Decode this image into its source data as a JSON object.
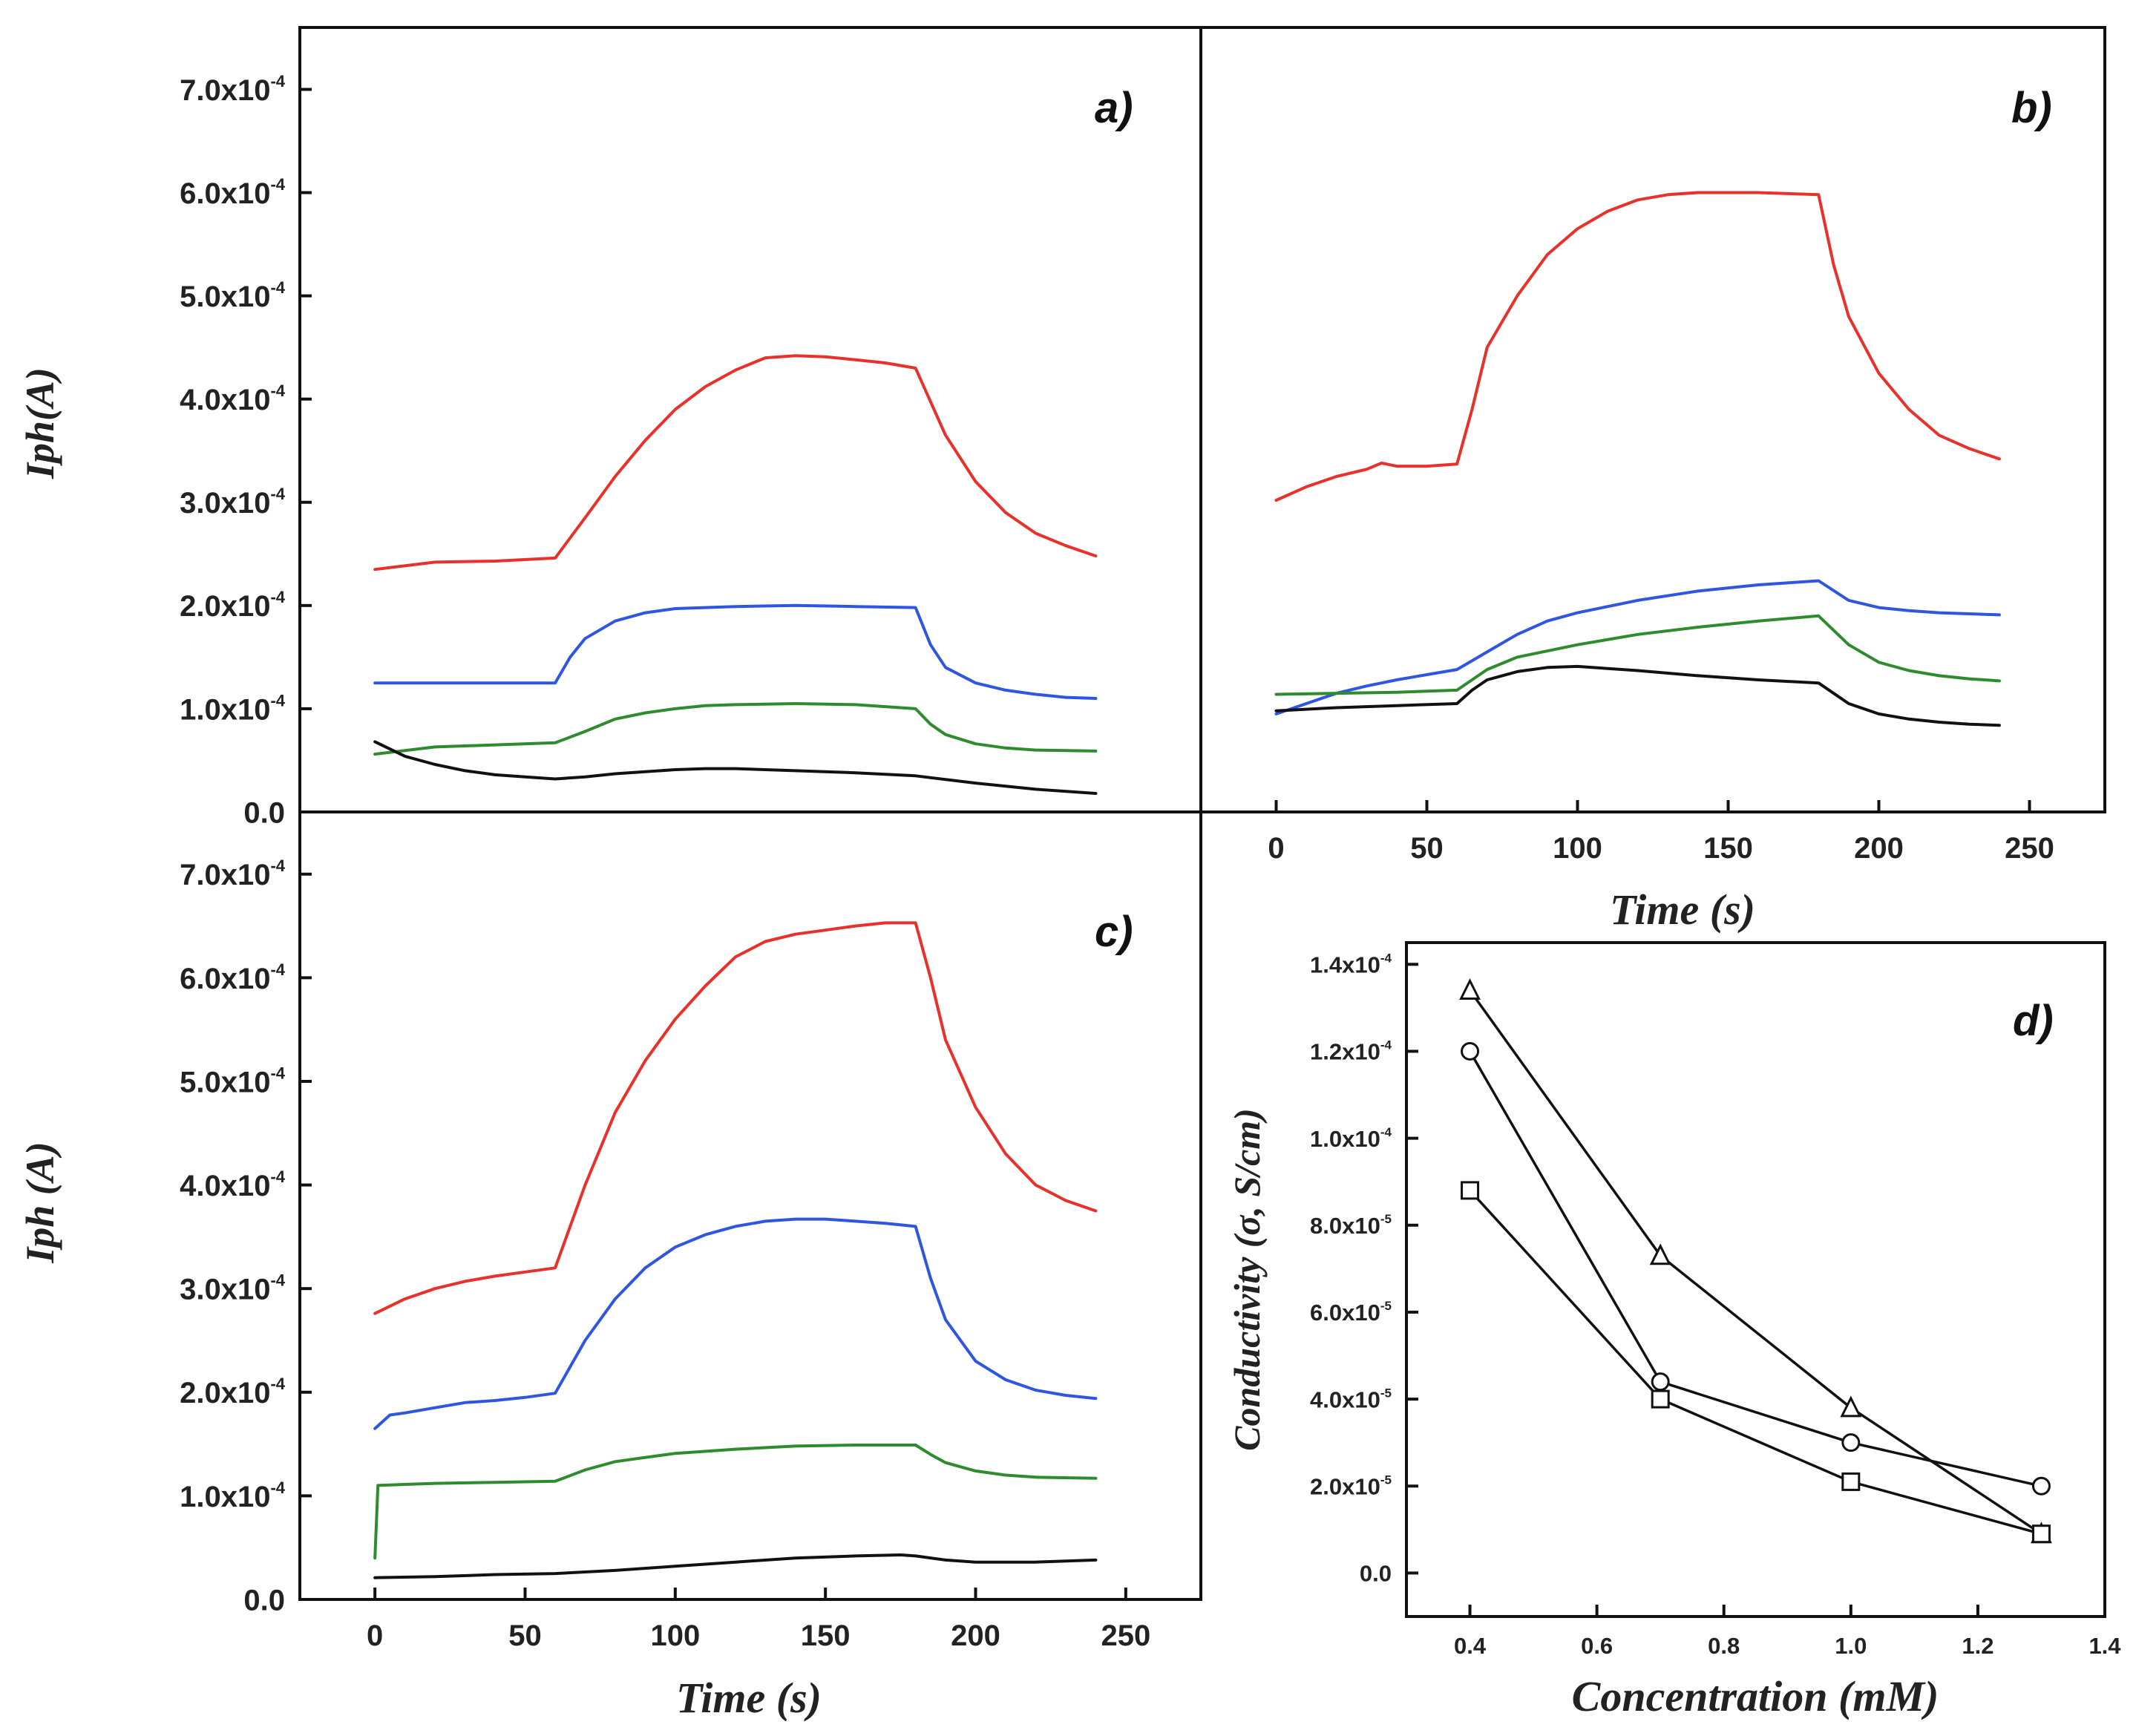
{
  "chart_data": [
    {
      "panel": "a)",
      "type": "line",
      "xlabel": "",
      "ylabel": "Iph(A)",
      "xlim": [
        -25,
        275
      ],
      "ylim": [
        0,
        0.00076
      ],
      "xticks": [],
      "yticks": [
        {
          "value": 0,
          "label": "0.0",
          "exp": ""
        },
        {
          "value": 0.0001,
          "label": "1.0x10",
          "exp": "-4"
        },
        {
          "value": 0.0002,
          "label": "2.0x10",
          "exp": "-4"
        },
        {
          "value": 0.0003,
          "label": "3.0x10",
          "exp": "-4"
        },
        {
          "value": 0.0004,
          "label": "4.0x10",
          "exp": "-4"
        },
        {
          "value": 0.0005,
          "label": "5.0x10",
          "exp": "-4"
        },
        {
          "value": 0.0006,
          "label": "6.0x10",
          "exp": "-4"
        },
        {
          "value": 0.0007,
          "label": "7.0x10",
          "exp": "-4"
        }
      ],
      "series": [
        {
          "name": "red",
          "color": "#e8312a",
          "x": [
            0,
            20,
            40,
            60,
            70,
            80,
            90,
            100,
            110,
            120,
            130,
            140,
            150,
            160,
            170,
            180,
            190,
            200,
            210,
            220,
            230,
            240
          ],
          "y": [
            0.000235,
            0.000242,
            0.000243,
            0.000246,
            0.000285,
            0.000325,
            0.00036,
            0.00039,
            0.000412,
            0.000428,
            0.00044,
            0.000442,
            0.000441,
            0.000438,
            0.000435,
            0.00043,
            0.000365,
            0.00032,
            0.00029,
            0.00027,
            0.000258,
            0.000248
          ]
        },
        {
          "name": "blue",
          "color": "#2f56e0",
          "x": [
            0,
            20,
            40,
            60,
            65,
            70,
            80,
            90,
            100,
            120,
            140,
            160,
            180,
            185,
            190,
            200,
            210,
            220,
            230,
            240
          ],
          "y": [
            0.000125,
            0.000125,
            0.000125,
            0.000125,
            0.00015,
            0.000168,
            0.000185,
            0.000193,
            0.000197,
            0.000199,
            0.0002,
            0.000199,
            0.000198,
            0.000162,
            0.00014,
            0.000125,
            0.000118,
            0.000114,
            0.000111,
            0.00011
          ]
        },
        {
          "name": "green",
          "color": "#2e8b2e",
          "x": [
            0,
            20,
            40,
            60,
            70,
            80,
            90,
            100,
            110,
            120,
            140,
            160,
            180,
            185,
            190,
            200,
            210,
            220,
            240
          ],
          "y": [
            5.6e-05,
            6.3e-05,
            6.5e-05,
            6.7e-05,
            7.8e-05,
            9e-05,
            9.6e-05,
            0.0001,
            0.000103,
            0.000104,
            0.000105,
            0.000104,
            0.0001,
            8.5e-05,
            7.5e-05,
            6.6e-05,
            6.2e-05,
            6e-05,
            5.9e-05
          ]
        },
        {
          "name": "black",
          "color": "#111111",
          "x": [
            0,
            10,
            20,
            30,
            40,
            50,
            60,
            70,
            80,
            90,
            100,
            110,
            120,
            140,
            160,
            180,
            200,
            220,
            240
          ],
          "y": [
            6.8e-05,
            5.4e-05,
            4.6e-05,
            4e-05,
            3.6e-05,
            3.4e-05,
            3.2e-05,
            3.4e-05,
            3.7e-05,
            3.9e-05,
            4.1e-05,
            4.2e-05,
            4.2e-05,
            4e-05,
            3.8e-05,
            3.5e-05,
            2.8e-05,
            2.2e-05,
            1.8e-05
          ]
        }
      ]
    },
    {
      "panel": "b)",
      "type": "line",
      "xlabel": "Time (s)",
      "ylabel": "",
      "xlim": [
        -25,
        275
      ],
      "ylim": [
        0,
        0.00076
      ],
      "xticks": [
        {
          "value": 0,
          "label": "0"
        },
        {
          "value": 50,
          "label": "50"
        },
        {
          "value": 100,
          "label": "100"
        },
        {
          "value": 150,
          "label": "150"
        },
        {
          "value": 200,
          "label": "200"
        },
        {
          "value": 250,
          "label": "250"
        }
      ],
      "yticks": [],
      "series": [
        {
          "name": "red",
          "color": "#e8312a",
          "x": [
            0,
            10,
            20,
            30,
            35,
            40,
            50,
            60,
            65,
            70,
            80,
            90,
            100,
            110,
            120,
            130,
            140,
            150,
            160,
            170,
            180,
            185,
            190,
            200,
            210,
            220,
            230,
            240
          ],
          "y": [
            0.000302,
            0.000315,
            0.000325,
            0.000332,
            0.000338,
            0.000335,
            0.000335,
            0.000337,
            0.00039,
            0.00045,
            0.0005,
            0.00054,
            0.000565,
            0.000582,
            0.000593,
            0.000598,
            0.0006,
            0.0006,
            0.0006,
            0.000599,
            0.000598,
            0.00053,
            0.00048,
            0.000425,
            0.00039,
            0.000365,
            0.000352,
            0.000342
          ]
        },
        {
          "name": "blue",
          "color": "#2f56e0",
          "x": [
            0,
            10,
            20,
            30,
            40,
            50,
            60,
            70,
            80,
            90,
            100,
            120,
            140,
            160,
            170,
            180,
            190,
            200,
            210,
            220,
            230,
            240
          ],
          "y": [
            9.5e-05,
            0.000105,
            0.000115,
            0.000122,
            0.000128,
            0.000133,
            0.000138,
            0.000155,
            0.000172,
            0.000185,
            0.000193,
            0.000205,
            0.000214,
            0.00022,
            0.000222,
            0.000224,
            0.000205,
            0.000198,
            0.000195,
            0.000193,
            0.000192,
            0.000191
          ]
        },
        {
          "name": "green",
          "color": "#2e8b2e",
          "x": [
            0,
            20,
            40,
            60,
            70,
            80,
            100,
            120,
            140,
            160,
            180,
            190,
            200,
            210,
            220,
            230,
            240
          ],
          "y": [
            0.000114,
            0.000115,
            0.000116,
            0.000118,
            0.000138,
            0.00015,
            0.000162,
            0.000172,
            0.000179,
            0.000185,
            0.00019,
            0.000162,
            0.000145,
            0.000137,
            0.000132,
            0.000129,
            0.000127
          ]
        },
        {
          "name": "black",
          "color": "#111111",
          "x": [
            0,
            20,
            40,
            60,
            65,
            70,
            80,
            90,
            100,
            120,
            140,
            160,
            180,
            190,
            200,
            210,
            220,
            230,
            240
          ],
          "y": [
            9.8e-05,
            0.000101,
            0.000103,
            0.000105,
            0.000118,
            0.000128,
            0.000136,
            0.00014,
            0.000141,
            0.000137,
            0.000132,
            0.000128,
            0.000125,
            0.000105,
            9.5e-05,
            9e-05,
            8.7e-05,
            8.5e-05,
            8.4e-05
          ]
        }
      ]
    },
    {
      "panel": "c)",
      "type": "line",
      "xlabel": "Time (s)",
      "ylabel": "Iph (A)",
      "xlim": [
        -25,
        275
      ],
      "ylim": [
        0,
        0.00076
      ],
      "xticks": [
        {
          "value": 0,
          "label": "0"
        },
        {
          "value": 50,
          "label": "50"
        },
        {
          "value": 100,
          "label": "100"
        },
        {
          "value": 150,
          "label": "150"
        },
        {
          "value": 200,
          "label": "200"
        },
        {
          "value": 250,
          "label": "250"
        }
      ],
      "yticks": [
        {
          "value": 0,
          "label": "0.0",
          "exp": ""
        },
        {
          "value": 0.0001,
          "label": "1.0x10",
          "exp": "-4"
        },
        {
          "value": 0.0002,
          "label": "2.0x10",
          "exp": "-4"
        },
        {
          "value": 0.0003,
          "label": "3.0x10",
          "exp": "-4"
        },
        {
          "value": 0.0004,
          "label": "4.0x10",
          "exp": "-4"
        },
        {
          "value": 0.0005,
          "label": "5.0x10",
          "exp": "-4"
        },
        {
          "value": 0.0006,
          "label": "6.0x10",
          "exp": "-4"
        },
        {
          "value": 0.0007,
          "label": "7.0x10",
          "exp": "-4"
        }
      ],
      "series": [
        {
          "name": "red",
          "color": "#e8312a",
          "x": [
            0,
            10,
            20,
            30,
            40,
            50,
            60,
            70,
            80,
            90,
            100,
            110,
            120,
            130,
            140,
            150,
            160,
            170,
            180,
            185,
            190,
            200,
            210,
            220,
            230,
            240
          ],
          "y": [
            0.000276,
            0.00029,
            0.0003,
            0.000307,
            0.000312,
            0.000316,
            0.00032,
            0.0004,
            0.00047,
            0.00052,
            0.00056,
            0.000592,
            0.00062,
            0.000635,
            0.000642,
            0.000646,
            0.00065,
            0.000653,
            0.000653,
            0.0006,
            0.00054,
            0.000475,
            0.00043,
            0.0004,
            0.000385,
            0.000375
          ]
        },
        {
          "name": "blue",
          "color": "#2f56e0",
          "x": [
            0,
            5,
            10,
            20,
            30,
            40,
            50,
            60,
            70,
            80,
            90,
            100,
            110,
            120,
            130,
            140,
            150,
            160,
            170,
            180,
            185,
            190,
            200,
            210,
            220,
            230,
            240
          ],
          "y": [
            0.000165,
            0.000178,
            0.00018,
            0.000185,
            0.00019,
            0.000192,
            0.000195,
            0.000199,
            0.00025,
            0.00029,
            0.00032,
            0.00034,
            0.000352,
            0.00036,
            0.000365,
            0.000367,
            0.000367,
            0.000365,
            0.000363,
            0.00036,
            0.00031,
            0.00027,
            0.00023,
            0.000212,
            0.000202,
            0.000197,
            0.000194
          ]
        },
        {
          "name": "green",
          "color": "#2e8b2e",
          "x": [
            0,
            1,
            10,
            20,
            40,
            60,
            70,
            80,
            100,
            120,
            140,
            160,
            180,
            185,
            190,
            200,
            210,
            220,
            240
          ],
          "y": [
            4e-05,
            0.00011,
            0.000111,
            0.000112,
            0.000113,
            0.000114,
            0.000125,
            0.000133,
            0.000141,
            0.000145,
            0.000148,
            0.000149,
            0.000149,
            0.00014,
            0.000132,
            0.000124,
            0.00012,
            0.000118,
            0.000117
          ]
        },
        {
          "name": "black",
          "color": "#111111",
          "x": [
            0,
            20,
            40,
            60,
            80,
            100,
            120,
            140,
            160,
            175,
            180,
            190,
            200,
            220,
            240
          ],
          "y": [
            2.1e-05,
            2.2e-05,
            2.4e-05,
            2.5e-05,
            2.8e-05,
            3.2e-05,
            3.6e-05,
            4e-05,
            4.2e-05,
            4.3e-05,
            4.2e-05,
            3.8e-05,
            3.6e-05,
            3.6e-05,
            3.8e-05
          ]
        }
      ]
    },
    {
      "panel": "d)",
      "type": "scatter",
      "xlabel": "Concentration (mM)",
      "ylabel": "Conductivity (σ, S/cm)",
      "xlim": [
        0.3,
        1.4
      ],
      "ylim": [
        -1e-05,
        0.000145
      ],
      "xticks": [
        {
          "value": 0.4,
          "label": "0.4"
        },
        {
          "value": 0.6,
          "label": "0.6"
        },
        {
          "value": 0.8,
          "label": "0.8"
        },
        {
          "value": 1.0,
          "label": "1.0"
        },
        {
          "value": 1.2,
          "label": "1.2"
        },
        {
          "value": 1.4,
          "label": "1.4"
        }
      ],
      "yticks": [
        {
          "value": 0,
          "label": "0.0",
          "exp": ""
        },
        {
          "value": 2e-05,
          "label": "2.0x10",
          "exp": "-5"
        },
        {
          "value": 4e-05,
          "label": "4.0x10",
          "exp": "-5"
        },
        {
          "value": 6e-05,
          "label": "6.0x10",
          "exp": "-5"
        },
        {
          "value": 8e-05,
          "label": "8.0x10",
          "exp": "-5"
        },
        {
          "value": 0.0001,
          "label": "1.0x10",
          "exp": "-4"
        },
        {
          "value": 0.00012,
          "label": "1.2x10",
          "exp": "-4"
        },
        {
          "value": 0.00014,
          "label": "1.4x10",
          "exp": "-4"
        }
      ],
      "series": [
        {
          "name": "triangle",
          "marker": "triangle",
          "color": "#111111",
          "x": [
            0.4,
            0.7,
            1.0,
            1.3
          ],
          "y": [
            0.000134,
            7.3e-05,
            3.8e-05,
            9e-06
          ]
        },
        {
          "name": "circle",
          "marker": "circle",
          "color": "#111111",
          "x": [
            0.4,
            0.7,
            1.0,
            1.3
          ],
          "y": [
            0.00012,
            4.4e-05,
            3e-05,
            2e-05
          ]
        },
        {
          "name": "square",
          "marker": "square",
          "color": "#111111",
          "x": [
            0.4,
            0.7,
            1.0,
            1.3
          ],
          "y": [
            8.8e-05,
            4e-05,
            2.1e-05,
            9e-06
          ]
        }
      ]
    }
  ]
}
